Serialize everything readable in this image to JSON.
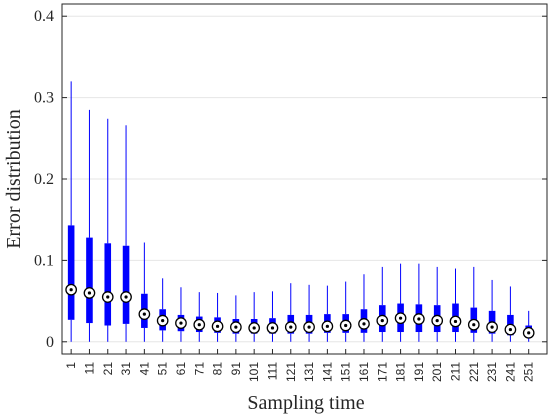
{
  "colors": {
    "box": "#0000ff",
    "grid": "#e6e6e6",
    "axis": "#262626",
    "median_outer": "#000000",
    "median_inner": "#ffffff"
  },
  "chart_data": {
    "type": "boxplot",
    "title": "",
    "xlabel": "Sampling time",
    "ylabel": "Error distribution",
    "ylim": [
      -0.015,
      0.415
    ],
    "yticks": [
      0,
      0.1,
      0.2,
      0.3,
      0.4
    ],
    "ytick_labels": [
      "0",
      "0.1",
      "0.2",
      "0.3",
      "0.4"
    ],
    "grid": "horizontal",
    "categories": [
      "1",
      "11",
      "21",
      "31",
      "41",
      "51",
      "61",
      "71",
      "81",
      "91",
      "101",
      "111",
      "121",
      "131",
      "141",
      "151",
      "161",
      "171",
      "181",
      "191",
      "201",
      "211",
      "221",
      "231",
      "241",
      "251"
    ],
    "whisker_low": [
      0,
      0,
      0,
      0,
      0,
      0,
      0,
      0,
      0,
      0,
      0,
      0,
      0,
      0,
      0,
      0,
      0,
      0,
      0,
      0,
      0,
      0,
      0,
      0,
      0,
      0
    ],
    "q1": [
      0.027,
      0.023,
      0.02,
      0.022,
      0.017,
      0.014,
      0.013,
      0.012,
      0.011,
      0.01,
      0.01,
      0.01,
      0.01,
      0.01,
      0.011,
      0.011,
      0.011,
      0.012,
      0.012,
      0.012,
      0.012,
      0.012,
      0.011,
      0.01,
      0.008,
      0.005
    ],
    "median": [
      0.064,
      0.06,
      0.055,
      0.055,
      0.034,
      0.026,
      0.023,
      0.021,
      0.019,
      0.018,
      0.017,
      0.017,
      0.018,
      0.018,
      0.019,
      0.02,
      0.022,
      0.026,
      0.029,
      0.028,
      0.026,
      0.025,
      0.021,
      0.018,
      0.015,
      0.011
    ],
    "q3": [
      0.143,
      0.128,
      0.121,
      0.118,
      0.059,
      0.04,
      0.033,
      0.031,
      0.03,
      0.028,
      0.028,
      0.029,
      0.033,
      0.033,
      0.034,
      0.034,
      0.04,
      0.045,
      0.047,
      0.046,
      0.045,
      0.047,
      0.042,
      0.038,
      0.033,
      0.02
    ],
    "whisker_high": [
      0.32,
      0.285,
      0.274,
      0.266,
      0.122,
      0.078,
      0.067,
      0.061,
      0.06,
      0.057,
      0.061,
      0.062,
      0.072,
      0.07,
      0.069,
      0.074,
      0.083,
      0.092,
      0.096,
      0.096,
      0.092,
      0.09,
      0.092,
      0.076,
      0.068,
      0.038
    ]
  }
}
